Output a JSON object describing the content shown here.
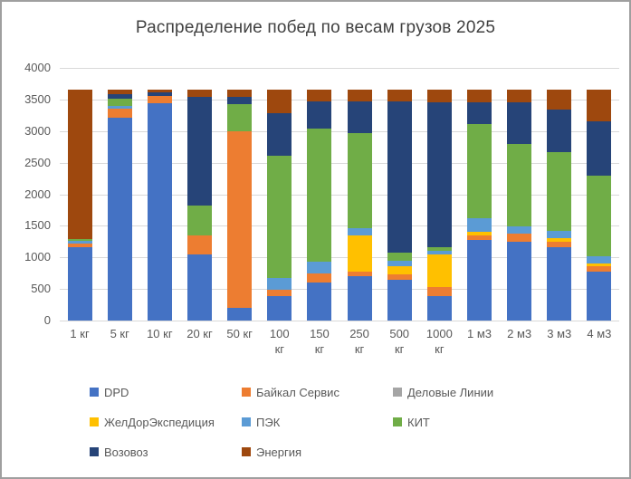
{
  "chart_data": {
    "type": "bar",
    "stacked": true,
    "title": "Распределение побед по весам грузов 2025",
    "categories": [
      "1 кг",
      "5 кг",
      "10 кг",
      "20 кг",
      "50 кг",
      "100 кг",
      "150 кг",
      "250 кг",
      "500 кг",
      "1000 кг",
      "1 м3",
      "2 м3",
      "3 м3",
      "4 м3"
    ],
    "series": [
      {
        "name": "DPD",
        "color": "#4472C4",
        "values": [
          1160,
          3205,
          3440,
          1045,
          200,
          390,
          600,
          700,
          640,
          385,
          1280,
          1250,
          1165,
          770
        ]
      },
      {
        "name": "Байкал Сервис",
        "color": "#ED7D31",
        "values": [
          60,
          150,
          115,
          300,
          2790,
          95,
          145,
          70,
          85,
          145,
          65,
          120,
          85,
          90
        ]
      },
      {
        "name": "Деловые Линии",
        "color": "#A5A5A5",
        "values": [
          0,
          0,
          0,
          0,
          0,
          0,
          0,
          0,
          0,
          0,
          0,
          0,
          0,
          0
        ]
      },
      {
        "name": "ЖелДорЭкспедиция",
        "color": "#FFC000",
        "values": [
          0,
          0,
          0,
          0,
          0,
          0,
          0,
          575,
          135,
          515,
          60,
          0,
          60,
          50
        ]
      },
      {
        "name": "ПЭК",
        "color": "#5B9BD5",
        "values": [
          35,
          40,
          0,
          0,
          0,
          190,
          190,
          120,
          80,
          55,
          210,
          120,
          105,
          110
        ]
      },
      {
        "name": "КИТ",
        "color": "#70AD47",
        "values": [
          30,
          120,
          0,
          475,
          440,
          1935,
          2105,
          1505,
          130,
          60,
          1495,
          1310,
          1250,
          1280
        ]
      },
      {
        "name": "Возовоз",
        "color": "#264478",
        "values": [
          0,
          75,
          55,
          1720,
          110,
          670,
          430,
          500,
          2400,
          2290,
          350,
          660,
          670,
          860
        ]
      },
      {
        "name": "Энергия",
        "color": "#9E480E",
        "values": [
          2365,
          60,
          40,
          110,
          110,
          370,
          180,
          180,
          180,
          200,
          190,
          190,
          315,
          490
        ]
      }
    ],
    "ylim": [
      0,
      4000
    ],
    "ytick_step": 500,
    "yticks": [
      "0",
      "500",
      "1000",
      "1500",
      "2000",
      "2500",
      "3000",
      "3500",
      "4000"
    ],
    "grid": "horizontal",
    "legend_position": "bottom",
    "legend_columns": 3,
    "colors": {
      "gridline": "#d9d9d9",
      "axis_text": "#595959",
      "title_text": "#404040"
    }
  }
}
